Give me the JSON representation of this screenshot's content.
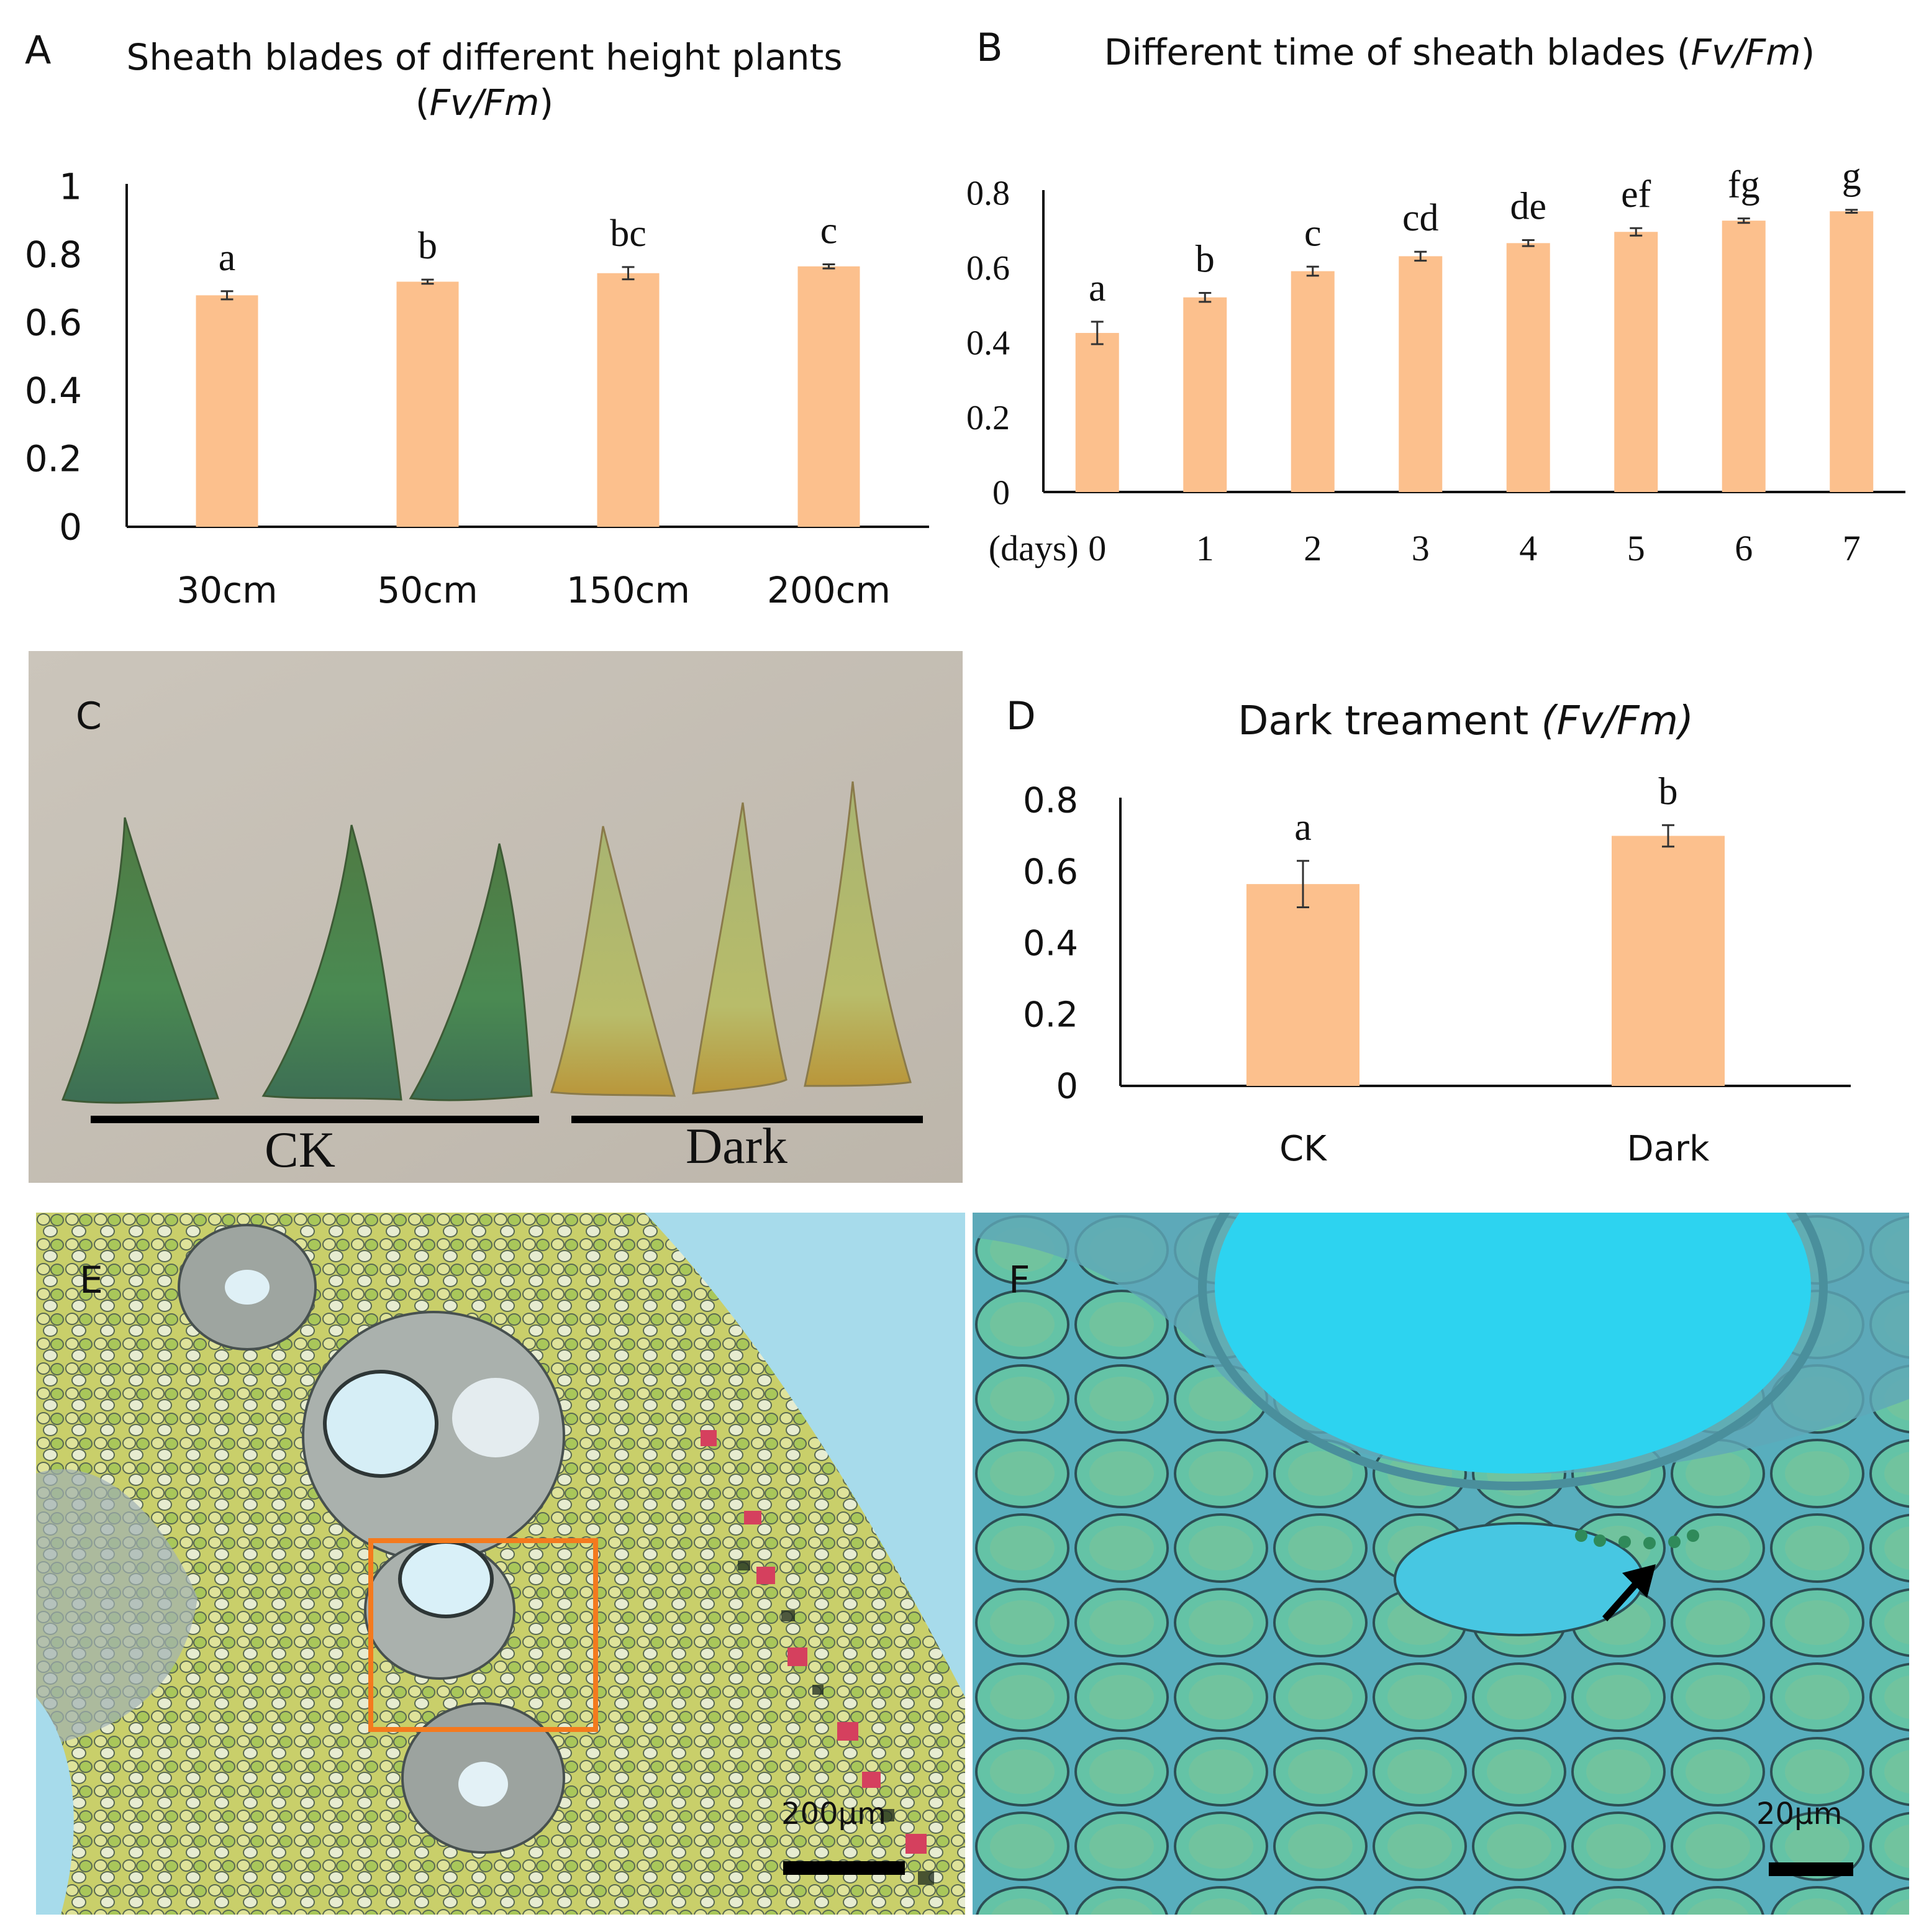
{
  "panels": {
    "A": {
      "letter": "A"
    },
    "B": {
      "letter": "B"
    },
    "C": {
      "letter": "C",
      "groups": [
        "CK",
        "Dark"
      ]
    },
    "D": {
      "letter": "D"
    },
    "E": {
      "letter": "E",
      "scale_bar": "200μm"
    },
    "F": {
      "letter": "F",
      "scale_bar": "20μm"
    }
  },
  "chart_data": [
    {
      "panel": "A",
      "type": "bar",
      "title_line1": "Sheath blades of different height plants",
      "title_line2_pre": "(",
      "title_line2_italic": "Fv/Fm",
      "title_line2_post": ")",
      "categories": [
        "30cm",
        "50cm",
        "150cm",
        "200cm"
      ],
      "values": [
        0.68,
        0.72,
        0.745,
        0.765
      ],
      "errors": [
        0.012,
        0.006,
        0.018,
        0.006
      ],
      "letters": [
        "a",
        "b",
        "bc",
        "c"
      ],
      "ylim": [
        0,
        1
      ],
      "yticks": [
        "0",
        "0.2",
        "0.4",
        "0.6",
        "0.8",
        "1"
      ],
      "bar_color": "#fcc08d",
      "grid": false
    },
    {
      "panel": "B",
      "type": "bar",
      "title_pre": "Different time of sheath blades (",
      "title_italic": "Fv/Fm",
      "title_post": ")",
      "xlabel_prefix": "(days)",
      "categories": [
        "0",
        "1",
        "2",
        "3",
        "4",
        "5",
        "6",
        "7"
      ],
      "values": [
        0.425,
        0.52,
        0.59,
        0.63,
        0.665,
        0.695,
        0.725,
        0.75
      ],
      "errors": [
        0.03,
        0.012,
        0.012,
        0.012,
        0.008,
        0.01,
        0.006,
        0.004
      ],
      "letters": [
        "a",
        "b",
        "c",
        "cd",
        "de",
        "ef",
        "fg",
        "g"
      ],
      "ylim": [
        0,
        0.8
      ],
      "yticks": [
        "0",
        "0.2",
        "0.4",
        "0.6",
        "0.8"
      ],
      "bar_color": "#fcc08d",
      "grid": false
    },
    {
      "panel": "D",
      "type": "bar",
      "title_pre": "Dark treament ",
      "title_italic": "(Fv/Fm)",
      "categories": [
        "CK",
        "Dark"
      ],
      "values": [
        0.565,
        0.7
      ],
      "errors": [
        0.065,
        0.03
      ],
      "letters": [
        "a",
        "b"
      ],
      "ylim": [
        0,
        0.8
      ],
      "yticks": [
        "0",
        "0.2",
        "0.4",
        "0.6",
        "0.8"
      ],
      "bar_color": "#fcc08d",
      "grid": false
    }
  ]
}
